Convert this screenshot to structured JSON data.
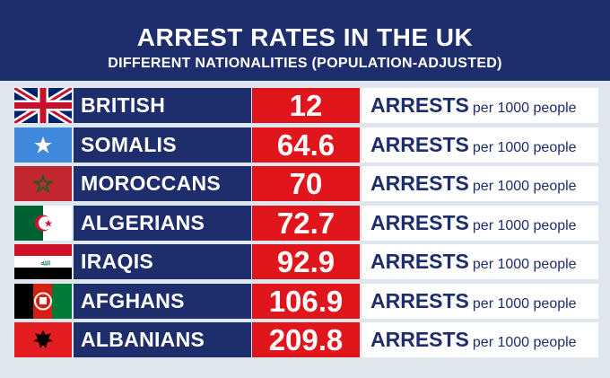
{
  "chart_data": {
    "type": "table",
    "title": "ARREST RATES IN THE UK",
    "subtitle": "DIFFERENT NATIONALITIES (POPULATION-ADJUSTED)",
    "categories": [
      "BRITISH",
      "SOMALIS",
      "MOROCCANS",
      "ALGERIANS",
      "IRAQIS",
      "AFGHANS",
      "ALBANIANS"
    ],
    "values": [
      12,
      64.6,
      70,
      72.7,
      92.9,
      106.9,
      209.8
    ],
    "value_labels": [
      "12",
      "64.6",
      "70",
      "72.7",
      "92.9",
      "106.9",
      "209.8"
    ],
    "unit_big": "ARRESTS",
    "unit_small": "per 1000 people",
    "flags": [
      "uk-flag-icon",
      "somalia-flag-icon",
      "morocco-flag-icon",
      "algeria-flag-icon",
      "iraq-flag-icon",
      "afghanistan-flag-icon",
      "albania-flag-icon"
    ]
  },
  "colors": {
    "navy": "#1e2d6b",
    "red": "#e0161c",
    "background": "#dfe6ee",
    "white": "#ffffff"
  }
}
